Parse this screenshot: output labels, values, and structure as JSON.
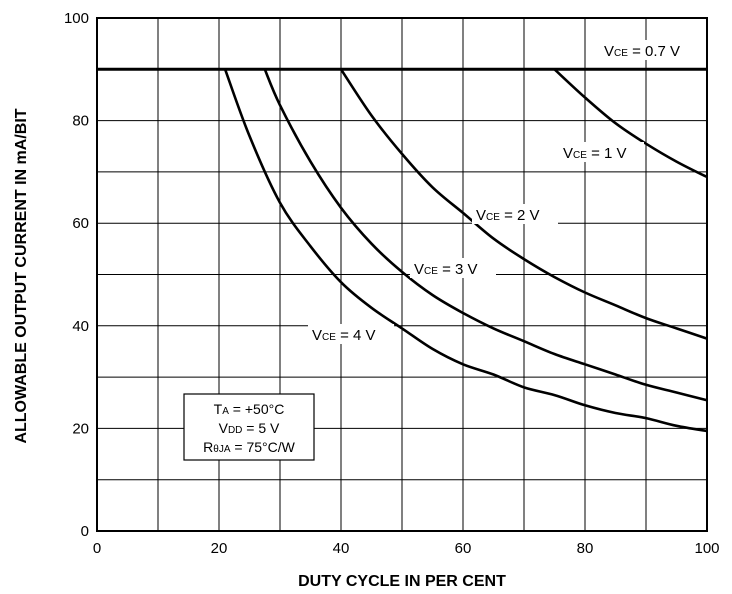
{
  "chart_data": {
    "type": "line",
    "xlabel": "DUTY CYCLE IN PER CENT",
    "ylabel": "ALLOWABLE OUTPUT CURRENT IN mA/BIT",
    "xlim": [
      0,
      100
    ],
    "ylim": [
      0,
      100
    ],
    "x_ticks": [
      "0",
      "20",
      "40",
      "60",
      "80",
      "100"
    ],
    "y_ticks": [
      "0",
      "20",
      "40",
      "60",
      "80",
      "100"
    ],
    "grid": true,
    "series": [
      {
        "name": "VCE = 0.7 V",
        "label_main": "V",
        "label_sub": "CE",
        "label_rest": " = 0.7 V",
        "x": [
          0,
          100
        ],
        "y": [
          90,
          90
        ]
      },
      {
        "name": "VCE = 1 V",
        "label_main": "V",
        "label_sub": "CE",
        "label_rest": " = 1 V",
        "x": [
          75,
          80,
          85,
          90,
          95,
          100
        ],
        "y": [
          90,
          84.5,
          79.5,
          75.5,
          72,
          69
        ]
      },
      {
        "name": "VCE = 2 V",
        "label_main": "V",
        "label_sub": "CE",
        "label_rest": " = 2 V",
        "x": [
          40,
          45,
          50,
          55,
          60,
          65,
          70,
          75,
          80,
          85,
          90,
          95,
          100
        ],
        "y": [
          90,
          81,
          73.5,
          67,
          62,
          57,
          53,
          49.5,
          46.5,
          44,
          41.5,
          39.5,
          37.5
        ]
      },
      {
        "name": "VCE = 3 V",
        "label_main": "V",
        "label_sub": "CE",
        "label_rest": " = 3 V",
        "x": [
          27.5,
          30,
          35,
          40,
          45,
          50,
          55,
          60,
          65,
          70,
          75,
          80,
          85,
          90,
          95,
          100
        ],
        "y": [
          90,
          83,
          72,
          63,
          56,
          50.5,
          46,
          42.5,
          39.5,
          37,
          34.5,
          32.5,
          30.5,
          28.5,
          27,
          25.5
        ]
      },
      {
        "name": "VCE = 4 V",
        "label_main": "V",
        "label_sub": "CE",
        "label_rest": " = 4 V",
        "x": [
          21,
          25,
          30,
          35,
          40,
          45,
          50,
          55,
          60,
          65,
          70,
          75,
          80,
          85,
          90,
          95,
          100
        ],
        "y": [
          90,
          77,
          64,
          55.5,
          48.5,
          43.5,
          39.5,
          35.5,
          32.5,
          30.5,
          28,
          26.5,
          24.5,
          23,
          22,
          20.5,
          19.5
        ]
      }
    ],
    "conditions": [
      {
        "main": "T",
        "sub": "A",
        "rest": " = +50°C"
      },
      {
        "main": "V",
        "sub": "DD",
        "rest": " = 5 V"
      },
      {
        "main": "R",
        "sub": "θJA",
        "rest": " = 75°C/W"
      }
    ]
  }
}
